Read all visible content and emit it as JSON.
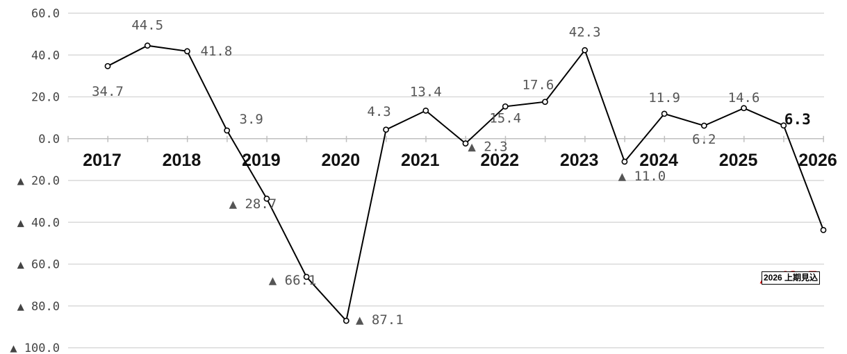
{
  "chart_data": {
    "type": "line",
    "year_labels": [
      "2017",
      "2018",
      "2019",
      "2020",
      "2021",
      "2022",
      "2023",
      "2024",
      "2025",
      "2026"
    ],
    "series": [
      {
        "values": [
          34.7,
          44.5,
          41.8,
          3.9,
          -28.7,
          -66.1,
          -87.1,
          4.3,
          13.4,
          -2.3,
          15.4,
          17.6,
          42.3,
          -11.0,
          11.9,
          6.2,
          14.6,
          6.3,
          -43.7
        ]
      }
    ],
    "point_labels": [
      "34.7",
      "44.5",
      "41.8",
      "3.9",
      "▲ 28.7",
      "▲ 66.1",
      "▲ 87.1",
      "4.3",
      "13.4",
      "▲ 2.3",
      "15.4",
      "17.6",
      "42.3",
      "▲ 11.0",
      "11.9",
      "6.2",
      "14.6",
      "6.3",
      "▲ 43.7"
    ],
    "y_tick_labels": [
      "60.0",
      "40.0",
      "20.0",
      "0.0",
      "▲ 20.0",
      "▲ 40.0",
      "▲ 60.0",
      "▲ 80.0",
      "▲ 100.0"
    ],
    "y_ticks": [
      60,
      40,
      20,
      0,
      -20,
      -40,
      -60,
      -80,
      -100
    ],
    "ylim": [
      -100,
      60
    ],
    "grid": true,
    "last_point_color": "#ff0000",
    "line_color": "#000000",
    "grid_color": "#d9d9d9",
    "annotation": "2026 上期見込"
  }
}
